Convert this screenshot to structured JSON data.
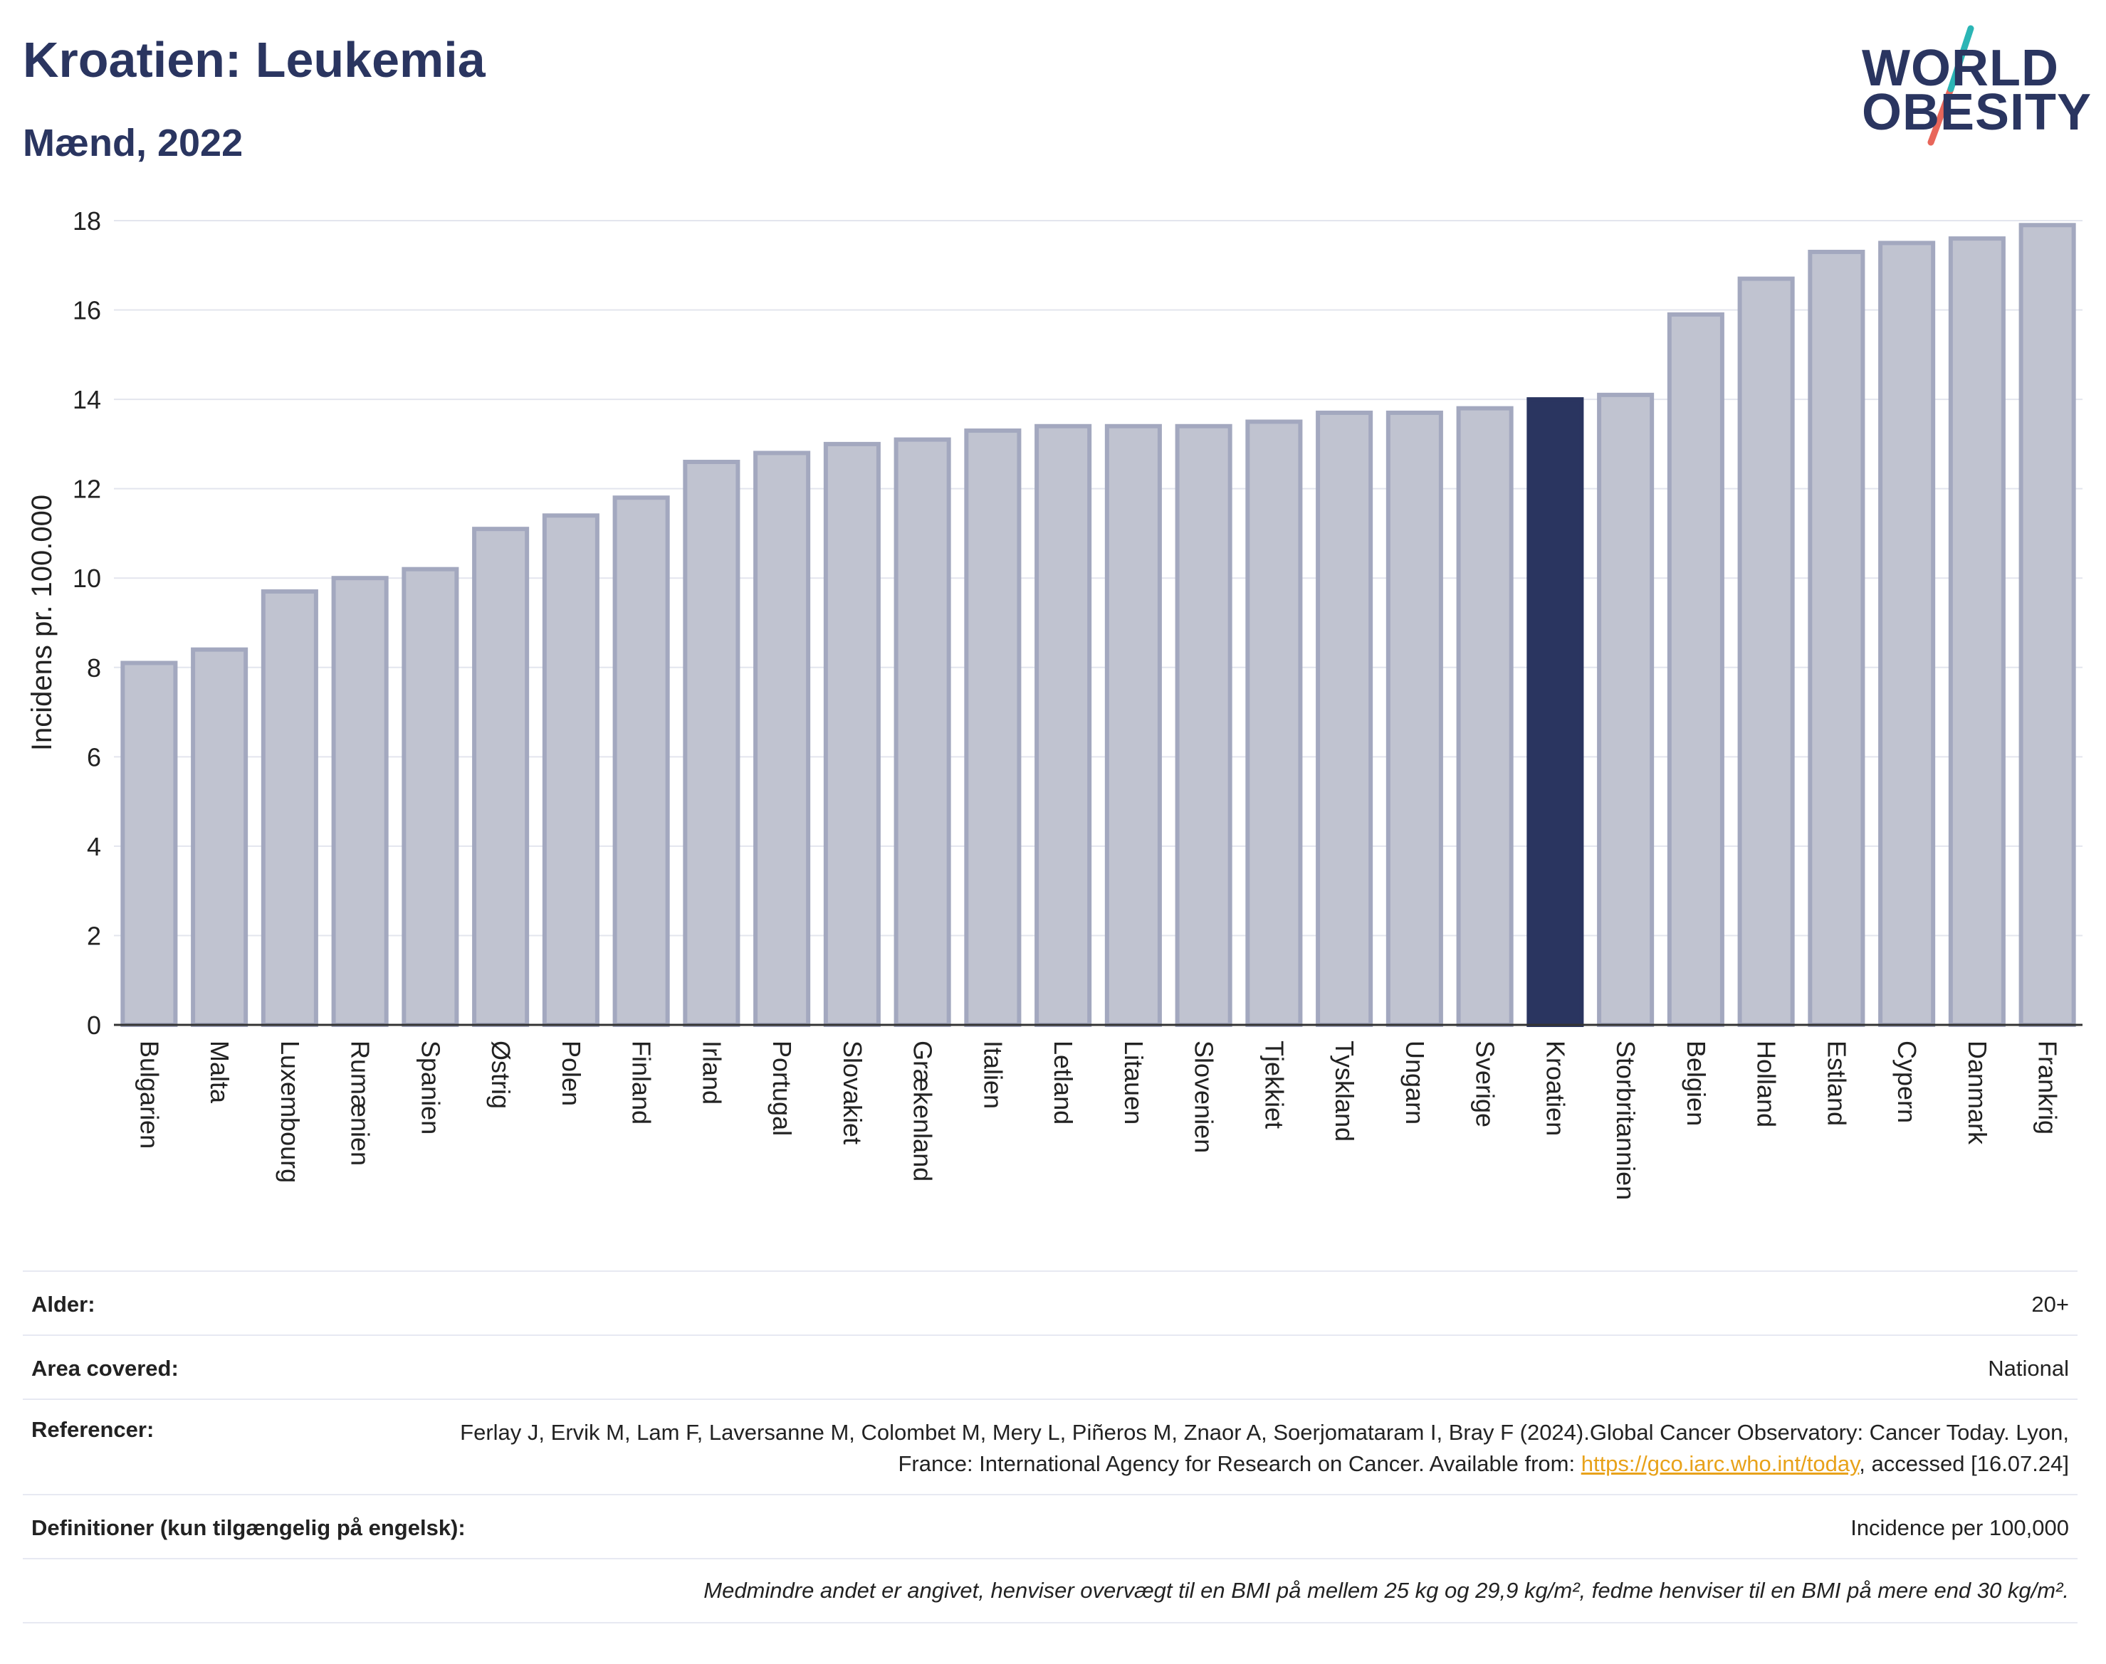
{
  "header": {
    "title": "Kroatien: Leukemia",
    "subtitle": "Mænd, 2022"
  },
  "logo": {
    "line1": "WORLD",
    "line2": "OBESITY",
    "colors": {
      "text": "#2a3560",
      "slash_top": "#2bb5b5",
      "slash_bottom": "#e8665a"
    }
  },
  "chart_data": {
    "type": "bar",
    "ylabel": "Incidens pr. 100.000",
    "xlabel": "",
    "ylim": [
      0,
      18
    ],
    "yticks": [
      0,
      2,
      4,
      6,
      8,
      10,
      12,
      14,
      16,
      18
    ],
    "grid": true,
    "highlight": "Kroatien",
    "colors": {
      "bar": "#c0c3d0",
      "bar_border": "#a3a8bf",
      "highlight": "#2a3560"
    },
    "categories": [
      "Bulgarien",
      "Malta",
      "Luxembourg",
      "Rumænien",
      "Spanien",
      "Østrig",
      "Polen",
      "Finland",
      "Irland",
      "Portugal",
      "Slovakiet",
      "Grækenland",
      "Italien",
      "Letland",
      "Litauen",
      "Slovenien",
      "Tjekkiet",
      "Tyskland",
      "Ungarn",
      "Sverige",
      "Kroatien",
      "Storbritannien",
      "Belgien",
      "Holland",
      "Estland",
      "Cypern",
      "Danmark",
      "Frankrig"
    ],
    "values": [
      8.1,
      8.4,
      9.7,
      10.0,
      10.2,
      11.1,
      11.4,
      11.8,
      12.6,
      12.8,
      13.0,
      13.1,
      13.3,
      13.4,
      13.4,
      13.4,
      13.5,
      13.7,
      13.7,
      13.8,
      14.0,
      14.1,
      15.9,
      16.7,
      17.3,
      17.5,
      17.6,
      17.9
    ]
  },
  "info": {
    "age_label": "Alder:",
    "age_value": "20+",
    "area_label": "Area covered:",
    "area_value": "National",
    "ref_label": "Referencer:",
    "ref_text_1": "Ferlay J, Ervik M, Lam F, Laversanne M, Colombet M, Mery L, Piñeros M, Znaor A, Soerjomataram I, Bray F (2024).Global Cancer Observatory: Cancer Today. Lyon, France: International Agency for Research on Cancer. Available from:",
    "ref_link": "https://gco.iarc.who.int/today",
    "ref_text_2": ", accessed [16.07.24]",
    "def_label": "Definitioner (kun tilgængelig på engelsk):",
    "def_value": "Incidence per 100,000",
    "note": "Medmindre andet er angivet, henviser overvægt til en BMI på mellem 25 kg og 29,9 kg/m², fedme henviser til en BMI på mere end 30 kg/m²."
  }
}
